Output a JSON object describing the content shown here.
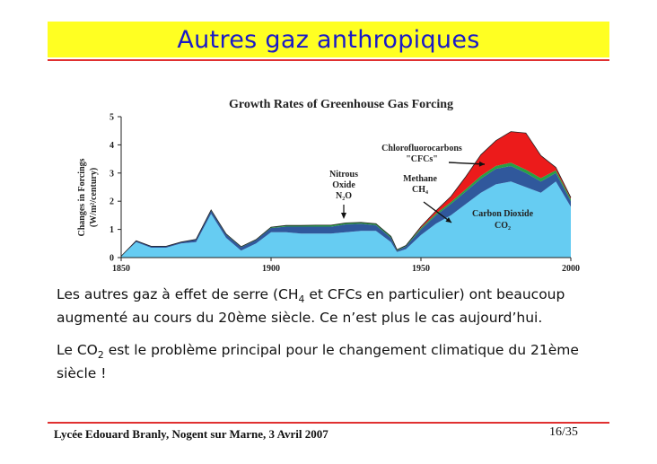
{
  "slide": {
    "title": "Autres gaz anthropiques",
    "para1_a": "Les autres gaz à effet de serre (CH",
    "para1_sub": "4",
    "para1_b": " et CFCs en particulier) ont beaucoup augmenté au cours du 20ème siècle.  Ce n’est plus le cas aujourd’hui.",
    "para2_a": "Le CO",
    "para2_sub": "2",
    "para2_b": " est le problème principal pour le changement climatique du 21ème siècle !",
    "footer_left": "Lycée Edouard Branly, Nogent sur Marne, 3 Avril 2007",
    "footer_right": "16/35"
  },
  "chart_data": {
    "type": "area",
    "title": "Growth Rates of Greenhouse Gas Forcing",
    "ylabel_line1": "Changes in Forcings",
    "ylabel_line2": "(W/m²/century)",
    "xlim": [
      1850,
      2000
    ],
    "ylim": [
      0,
      5
    ],
    "xticks": [
      1850,
      1900,
      1950,
      2000
    ],
    "yticks": [
      0,
      1,
      2,
      3,
      4,
      5
    ],
    "stacked": true,
    "x": [
      1850,
      1855,
      1860,
      1865,
      1870,
      1875,
      1880,
      1885,
      1890,
      1895,
      1900,
      1905,
      1910,
      1915,
      1920,
      1925,
      1930,
      1935,
      1940,
      1942,
      1945,
      1950,
      1955,
      1960,
      1965,
      1970,
      1975,
      1980,
      1985,
      1990,
      1995,
      2000
    ],
    "series": [
      {
        "name": "CO2",
        "color": "#66ccf2",
        "values": [
          0.05,
          0.55,
          0.35,
          0.35,
          0.5,
          0.55,
          1.55,
          0.7,
          0.25,
          0.5,
          0.9,
          0.9,
          0.85,
          0.85,
          0.85,
          0.9,
          0.95,
          0.95,
          0.55,
          0.2,
          0.3,
          0.8,
          1.2,
          1.5,
          1.9,
          2.3,
          2.6,
          2.7,
          2.5,
          2.3,
          2.7,
          1.8
        ]
      },
      {
        "name": "CH4",
        "color": "#30589c",
        "values": [
          0.0,
          0.05,
          0.05,
          0.05,
          0.05,
          0.1,
          0.12,
          0.12,
          0.12,
          0.12,
          0.15,
          0.2,
          0.25,
          0.25,
          0.25,
          0.28,
          0.25,
          0.2,
          0.15,
          0.05,
          0.1,
          0.2,
          0.3,
          0.4,
          0.45,
          0.5,
          0.55,
          0.55,
          0.5,
          0.4,
          0.3,
          0.2
        ]
      },
      {
        "name": "N2O",
        "color": "#27a044",
        "values": [
          0.0,
          0.0,
          0.0,
          0.0,
          0.0,
          0.0,
          0.02,
          0.02,
          0.02,
          0.02,
          0.03,
          0.04,
          0.04,
          0.05,
          0.05,
          0.05,
          0.05,
          0.05,
          0.05,
          0.03,
          0.03,
          0.05,
          0.06,
          0.07,
          0.08,
          0.1,
          0.1,
          0.12,
          0.12,
          0.12,
          0.1,
          0.08
        ]
      },
      {
        "name": "CFCs",
        "color": "#ec1b1b",
        "values": [
          0,
          0,
          0,
          0,
          0,
          0,
          0,
          0,
          0,
          0,
          0,
          0,
          0,
          0,
          0,
          0,
          0,
          0,
          0,
          0,
          0,
          0.05,
          0.1,
          0.2,
          0.45,
          0.75,
          0.9,
          1.1,
          1.3,
          0.8,
          0.1,
          0.05
        ]
      }
    ],
    "annotations": [
      {
        "lines": [
          "Chlorofluorocarbons",
          "\"CFCs\""
        ]
      },
      {
        "lines": [
          "Nitrous",
          "Oxide",
          "N₂O"
        ]
      },
      {
        "lines": [
          "Methane",
          "CH₄"
        ]
      },
      {
        "lines": [
          "Carbon Dioxide",
          "CO₂"
        ]
      }
    ]
  }
}
